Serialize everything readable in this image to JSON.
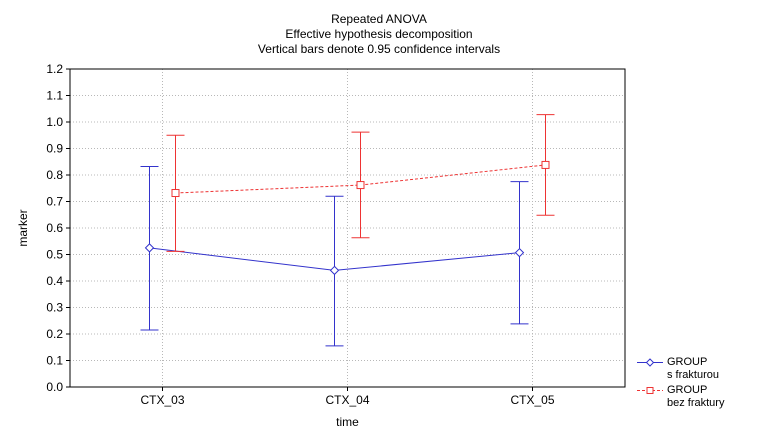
{
  "chart_data": {
    "type": "line",
    "title": "Repeated ANOVA",
    "subtitle_lines": [
      "Effective hypothesis decomposition",
      "Vertical bars denote 0.95 confidence intervals"
    ],
    "xlabel": "time",
    "ylabel": "marker",
    "categories": [
      "CTX_03",
      "CTX_04",
      "CTX_05"
    ],
    "ylim": [
      0.0,
      1.2
    ],
    "yticks": [
      "0.0",
      "0.1",
      "0.2",
      "0.3",
      "0.4",
      "0.5",
      "0.6",
      "0.7",
      "0.8",
      "0.9",
      "1.0",
      "1.1",
      "1.2"
    ],
    "grid": true,
    "legend_position": "bottom-right",
    "series": [
      {
        "name": "GROUP",
        "sublabel": "s frakturou",
        "color": "#3333cc",
        "marker": "diamond",
        "line_style": "solid",
        "values": [
          0.525,
          0.44,
          0.507
        ],
        "ci_lower": [
          0.215,
          0.155,
          0.238
        ],
        "ci_upper": [
          0.832,
          0.72,
          0.775
        ]
      },
      {
        "name": "GROUP",
        "sublabel": "bez fraktury",
        "color": "#ee3333",
        "marker": "square",
        "line_style": "dashed",
        "values": [
          0.732,
          0.762,
          0.838
        ],
        "ci_lower": [
          0.512,
          0.563,
          0.648
        ],
        "ci_upper": [
          0.95,
          0.962,
          1.028
        ]
      }
    ]
  }
}
